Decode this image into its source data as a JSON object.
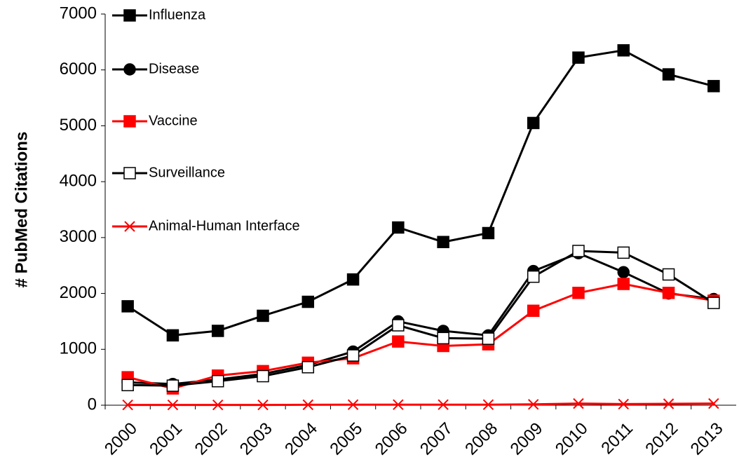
{
  "chart_data": {
    "type": "line",
    "y_label": "# PubMed Citations",
    "categories": [
      "2000",
      "2001",
      "2002",
      "2003",
      "2004",
      "2005",
      "2006",
      "2007",
      "2008",
      "2009",
      "2010",
      "2011",
      "2012",
      "2013"
    ],
    "series": [
      {
        "name": "Influenza",
        "color": "#000000",
        "marker": "square",
        "marker_fill": "#000000",
        "values": [
          1770,
          1250,
          1330,
          1600,
          1850,
          2250,
          3180,
          2920,
          3080,
          5050,
          6220,
          6350,
          5920,
          5710
        ]
      },
      {
        "name": "Disease",
        "color": "#000000",
        "marker": "circle",
        "marker_fill": "#000000",
        "values": [
          410,
          380,
          460,
          560,
          720,
          960,
          1500,
          1330,
          1250,
          2400,
          2720,
          2380,
          2000,
          1900
        ]
      },
      {
        "name": "Vaccine",
        "color": "#ff0000",
        "marker": "square",
        "marker_fill": "#ff0000",
        "values": [
          500,
          300,
          530,
          610,
          760,
          840,
          1140,
          1060,
          1090,
          1690,
          2010,
          2170,
          2010,
          1870
        ]
      },
      {
        "name": "Surveillance",
        "color": "#000000",
        "marker": "square",
        "marker_fill": "#ffffff",
        "values": [
          360,
          350,
          430,
          520,
          680,
          890,
          1430,
          1200,
          1190,
          2300,
          2760,
          2730,
          2340,
          1830
        ]
      },
      {
        "name": "Animal-Human Interface",
        "color": "#ff0000",
        "marker": "x",
        "marker_fill": "#ff0000",
        "values": [
          5,
          5,
          5,
          5,
          8,
          10,
          10,
          10,
          10,
          15,
          30,
          20,
          25,
          30
        ]
      }
    ],
    "ylim": [
      0,
      7000
    ],
    "yticks": [
      0,
      1000,
      2000,
      3000,
      4000,
      5000,
      6000,
      7000
    ],
    "grid": false,
    "legend": "upper left"
  }
}
